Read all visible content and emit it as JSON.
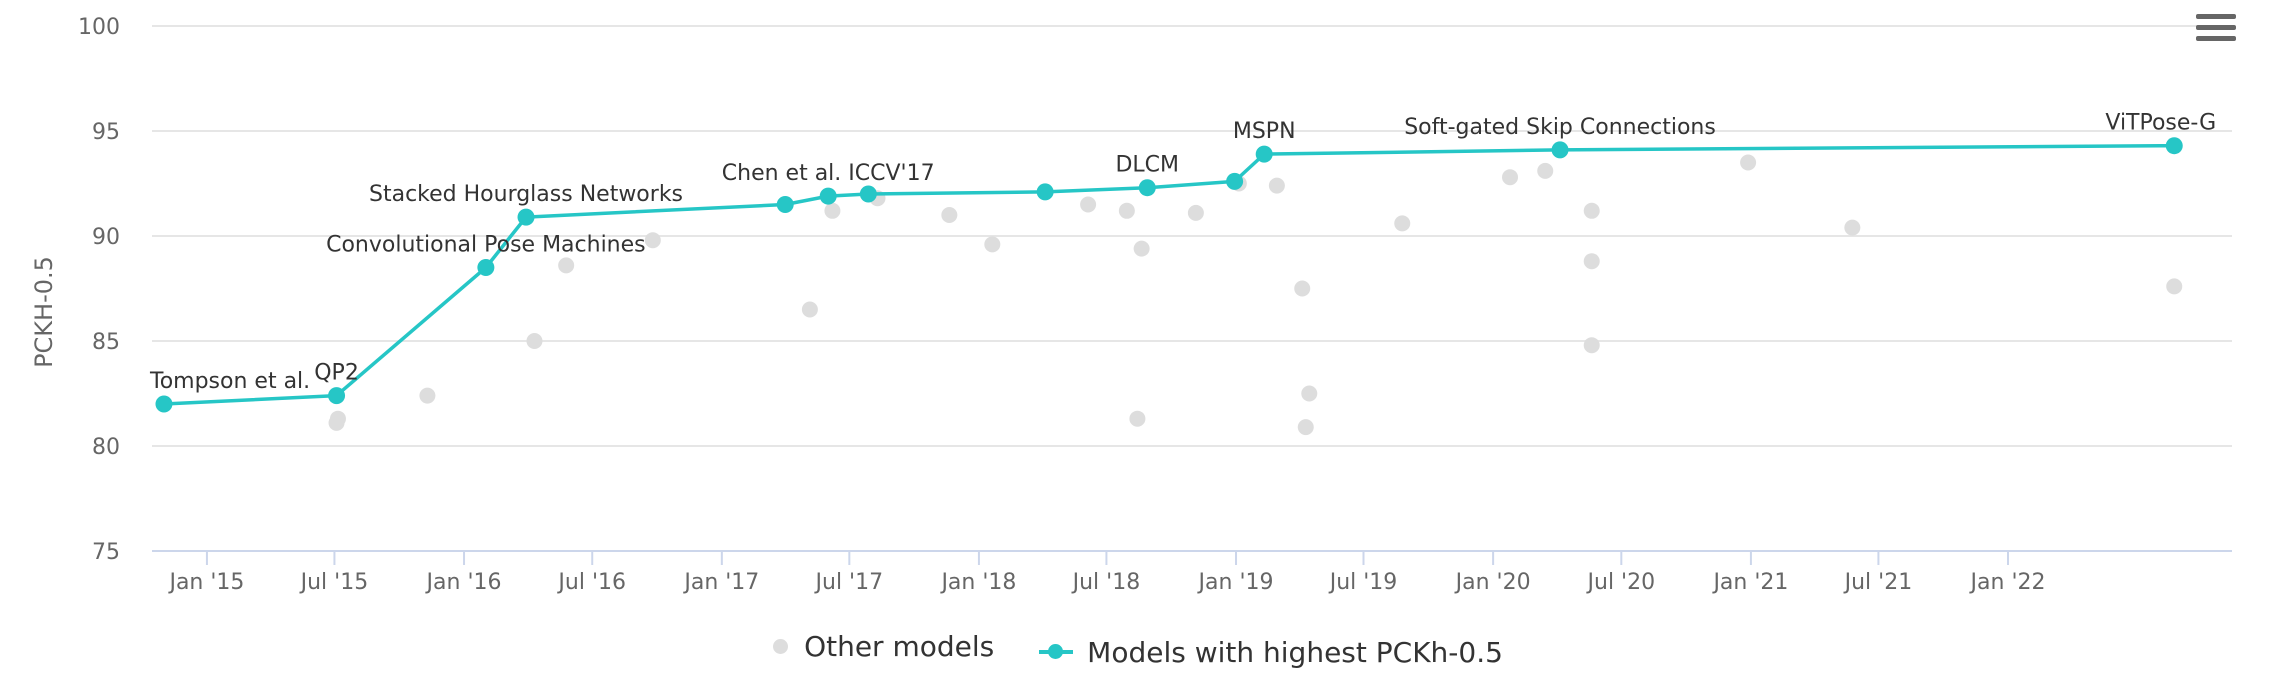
{
  "chart_data": {
    "type": "scatter",
    "title": "",
    "xlabel": "",
    "ylabel": "PCKH-0.5",
    "ylim": [
      75,
      100
    ],
    "xlim": [
      "2014-10-15",
      "2022-11-15"
    ],
    "yticks": [
      75,
      80,
      85,
      90,
      95,
      100
    ],
    "xticks": [
      {
        "date": "2015-01-01",
        "label": "Jan '15"
      },
      {
        "date": "2015-07-01",
        "label": "Jul '15"
      },
      {
        "date": "2016-01-01",
        "label": "Jan '16"
      },
      {
        "date": "2016-07-01",
        "label": "Jul '16"
      },
      {
        "date": "2017-01-01",
        "label": "Jan '17"
      },
      {
        "date": "2017-07-01",
        "label": "Jul '17"
      },
      {
        "date": "2018-01-01",
        "label": "Jan '18"
      },
      {
        "date": "2018-07-01",
        "label": "Jul '18"
      },
      {
        "date": "2019-01-01",
        "label": "Jan '19"
      },
      {
        "date": "2019-07-01",
        "label": "Jul '19"
      },
      {
        "date": "2020-01-01",
        "label": "Jan '20"
      },
      {
        "date": "2020-07-01",
        "label": "Jul '20"
      },
      {
        "date": "2021-01-01",
        "label": "Jan '21"
      },
      {
        "date": "2021-07-01",
        "label": "Jul '21"
      },
      {
        "date": "2022-01-01",
        "label": "Jan '22"
      }
    ],
    "grid": true,
    "legend_position": "bottom-center",
    "series": [
      {
        "name": "Other models",
        "color": "#dddddd",
        "points": [
          {
            "date": "2015-07-04",
            "y": 81.1
          },
          {
            "date": "2015-07-06",
            "y": 81.3
          },
          {
            "date": "2015-11-10",
            "y": 82.4
          },
          {
            "date": "2016-04-10",
            "y": 85.0
          },
          {
            "date": "2016-05-25",
            "y": 88.6
          },
          {
            "date": "2016-09-25",
            "y": 89.8
          },
          {
            "date": "2017-05-06",
            "y": 86.5
          },
          {
            "date": "2017-06-07",
            "y": 91.2
          },
          {
            "date": "2017-08-10",
            "y": 91.8
          },
          {
            "date": "2017-11-20",
            "y": 91.0
          },
          {
            "date": "2018-01-20",
            "y": 89.6
          },
          {
            "date": "2018-06-05",
            "y": 91.5
          },
          {
            "date": "2018-07-30",
            "y": 91.2
          },
          {
            "date": "2018-08-14",
            "y": 81.3
          },
          {
            "date": "2018-08-20",
            "y": 89.4
          },
          {
            "date": "2018-11-05",
            "y": 91.1
          },
          {
            "date": "2019-01-05",
            "y": 92.5
          },
          {
            "date": "2019-02-28",
            "y": 92.4
          },
          {
            "date": "2019-04-05",
            "y": 87.5
          },
          {
            "date": "2019-04-10",
            "y": 80.9
          },
          {
            "date": "2019-04-15",
            "y": 82.5
          },
          {
            "date": "2019-08-25",
            "y": 90.6
          },
          {
            "date": "2020-01-25",
            "y": 92.8
          },
          {
            "date": "2020-03-15",
            "y": 93.1
          },
          {
            "date": "2020-05-20",
            "y": 91.2
          },
          {
            "date": "2020-05-20",
            "y": 88.8
          },
          {
            "date": "2020-05-20",
            "y": 84.8
          },
          {
            "date": "2020-12-28",
            "y": 93.5
          },
          {
            "date": "2021-05-25",
            "y": 90.4
          },
          {
            "date": "2022-08-25",
            "y": 87.6
          }
        ]
      },
      {
        "name": "Models with highest PCKh-0.5",
        "color": "#26c6c6",
        "points": [
          {
            "date": "2014-11-01",
            "y": 82.0,
            "label": "Tompson et al."
          },
          {
            "date": "2015-07-04",
            "y": 82.4,
            "label": "QP2"
          },
          {
            "date": "2016-02-01",
            "y": 88.5,
            "label": "Convolutional Pose Machines"
          },
          {
            "date": "2016-03-29",
            "y": 90.9,
            "label": "Stacked Hourglass Networks"
          },
          {
            "date": "2017-04-01",
            "y": 91.5,
            "label": ""
          },
          {
            "date": "2017-06-01",
            "y": 91.9,
            "label": "Chen et al. ICCV'17"
          },
          {
            "date": "2017-07-28",
            "y": 92.0,
            "label": ""
          },
          {
            "date": "2018-04-05",
            "y": 92.1,
            "label": ""
          },
          {
            "date": "2018-08-28",
            "y": 92.3,
            "label": "DLCM"
          },
          {
            "date": "2018-12-30",
            "y": 92.6,
            "label": ""
          },
          {
            "date": "2019-02-10",
            "y": 93.9,
            "label": "MSPN"
          },
          {
            "date": "2020-04-05",
            "y": 94.1,
            "label": "Soft-gated Skip Connections"
          },
          {
            "date": "2022-08-25",
            "y": 94.3,
            "label": "ViTPose-G"
          }
        ]
      }
    ]
  }
}
